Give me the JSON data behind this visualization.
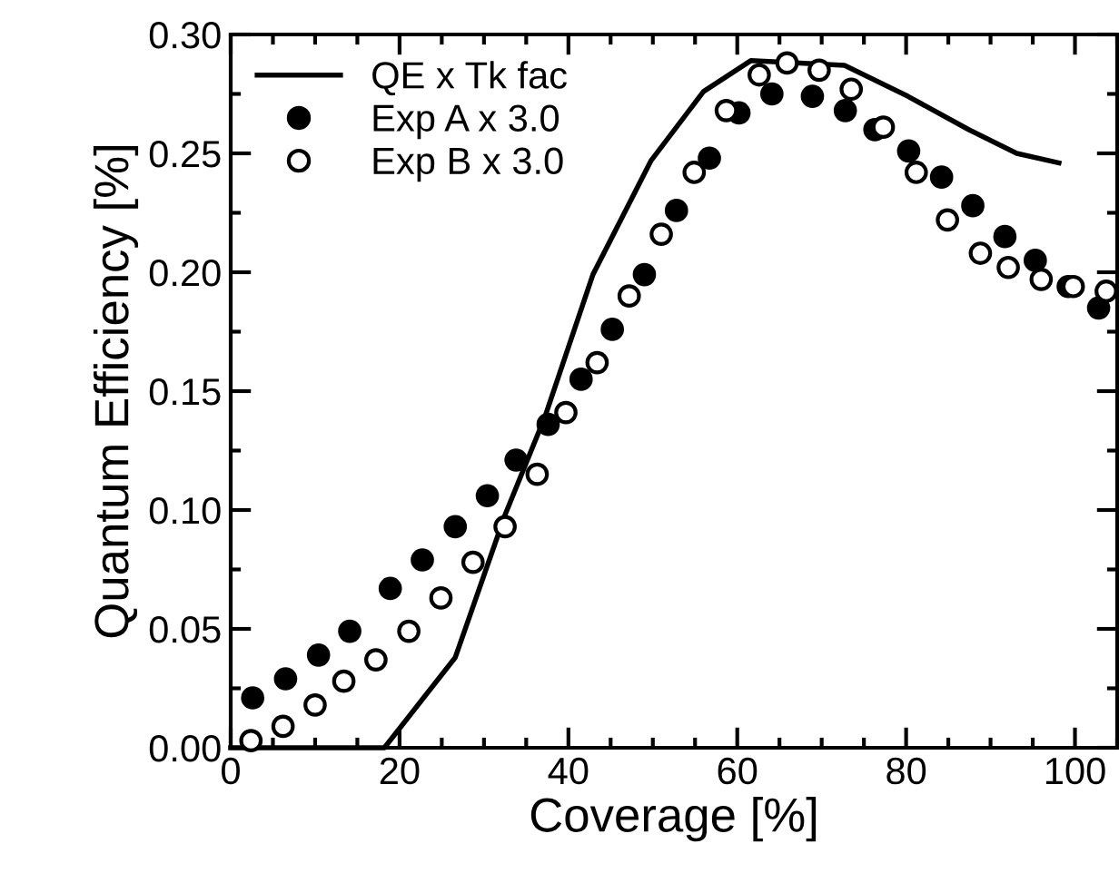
{
  "chart_data": {
    "type": "line",
    "xlabel": "Coverage [%]",
    "ylabel": "Quantum Efficiency [%]",
    "xlim": [
      0,
      105
    ],
    "xticks": [
      0,
      20,
      40,
      60,
      80,
      100
    ],
    "ylim": [
      0,
      0.3
    ],
    "yticks": [
      {
        "value": 0,
        "label": "0.00"
      },
      {
        "value": 0.05,
        "label": "0.05"
      },
      {
        "value": 0.1,
        "label": "0.10"
      },
      {
        "value": 0.15,
        "label": "0.15"
      },
      {
        "value": 0.2,
        "label": "0.20"
      },
      {
        "value": 0.25,
        "label": "0.25"
      },
      {
        "value": 0.3,
        "label": "0.30"
      }
    ],
    "legend": "top left",
    "grid": false,
    "series": [
      {
        "name": "QE x Tk fac",
        "color": "#000000",
        "marker": "none",
        "line_style": "solid",
        "x": [
          0,
          18.2,
          26.6,
          32.5,
          37.2,
          42.9,
          49.8,
          56,
          61.6,
          72.7,
          80.2,
          87.4,
          93.1,
          98.1
        ],
        "values": [
          0,
          0,
          0.038,
          0.098,
          0.139,
          0.199,
          0.247,
          0.276,
          0.289,
          0.287,
          0.274,
          0.26,
          0.25,
          0.246
        ]
      },
      {
        "name": "Exp A x 3.0",
        "type": "scatter",
        "color": "#000000",
        "marker": "circle",
        "x": [
          2.6,
          6.5,
          10.4,
          14.1,
          18.9,
          22.7,
          26.6,
          30.4,
          33.8,
          37.6,
          41.5,
          45.2,
          49.0,
          52.8,
          56.7,
          60.2,
          64.1,
          68.9,
          72.8,
          76.3,
          80.3,
          84.2,
          87.9,
          91.7,
          95.3,
          99.2,
          102.8
        ],
        "values": [
          0.021,
          0.029,
          0.039,
          0.049,
          0.067,
          0.079,
          0.093,
          0.106,
          0.121,
          0.136,
          0.155,
          0.176,
          0.199,
          0.226,
          0.248,
          0.267,
          0.275,
          0.274,
          0.268,
          0.26,
          0.251,
          0.24,
          0.228,
          0.215,
          0.205,
          0.194,
          0.185
        ]
      },
      {
        "name": "Exp B x 3.0",
        "type": "scatter",
        "color": "#ffffff",
        "marker": "circle",
        "x": [
          2.4,
          6.2,
          10.0,
          13.4,
          17.2,
          21.1,
          24.9,
          28.7,
          32.5,
          36.3,
          39.7,
          43.4,
          47.2,
          51.0,
          54.9,
          58.7,
          62.6,
          65.9,
          69.7,
          73.5,
          77.3,
          81.2,
          84.9,
          88.8,
          92.1,
          96.0,
          99.8,
          103.7
        ],
        "values": [
          0.003,
          0.009,
          0.018,
          0.028,
          0.037,
          0.049,
          0.063,
          0.078,
          0.093,
          0.115,
          0.141,
          0.162,
          0.19,
          0.216,
          0.242,
          0.268,
          0.283,
          0.288,
          0.285,
          0.277,
          0.261,
          0.242,
          0.222,
          0.208,
          0.202,
          0.197,
          0.194,
          0.192
        ]
      }
    ]
  }
}
